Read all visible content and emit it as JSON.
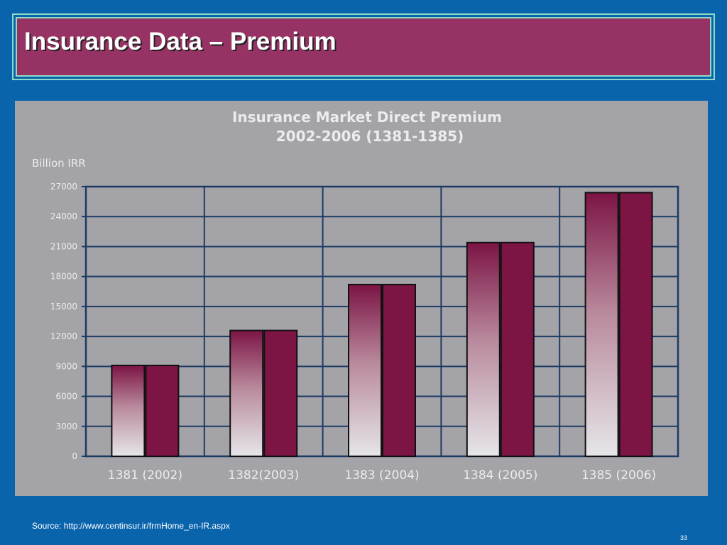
{
  "slide": {
    "title": "Insurance Data – Premium",
    "source": "Source: http://www.centinsur.ir/frmHome_en-IR.aspx",
    "page_number": "33"
  },
  "colors": {
    "background": "#0a64ac",
    "title_fill": "#973264",
    "title_border": "#8fdcc4",
    "chart_background": "#a3a3a8",
    "bar_dark": "#7c1444",
    "bar_light": "#e6e6ea",
    "grid": "#1c3a64"
  },
  "chart_data": {
    "type": "bar",
    "title": "Insurance Market Direct Premium",
    "subtitle": "2002-2006 (1381-1385)",
    "ylabel": "Billion IRR",
    "xlabel": "",
    "categories": [
      "1381 (2002)",
      "1382(2003)",
      "1383 (2004)",
      "1384 (2005)",
      "1385 (2006)"
    ],
    "series": [
      {
        "values": [
          9100,
          12600,
          17200,
          21400,
          26400
        ]
      },
      {
        "values": [
          9100,
          12600,
          17200,
          21400,
          26400
        ]
      }
    ],
    "series_style": [
      "gradient",
      "solid"
    ],
    "ylim": [
      0,
      27000
    ],
    "yticks": [
      "0",
      "3000",
      "6000",
      "9000",
      "12000",
      "15000",
      "18000",
      "21000",
      "24000",
      "27000"
    ],
    "grid": true,
    "legend": "none"
  }
}
